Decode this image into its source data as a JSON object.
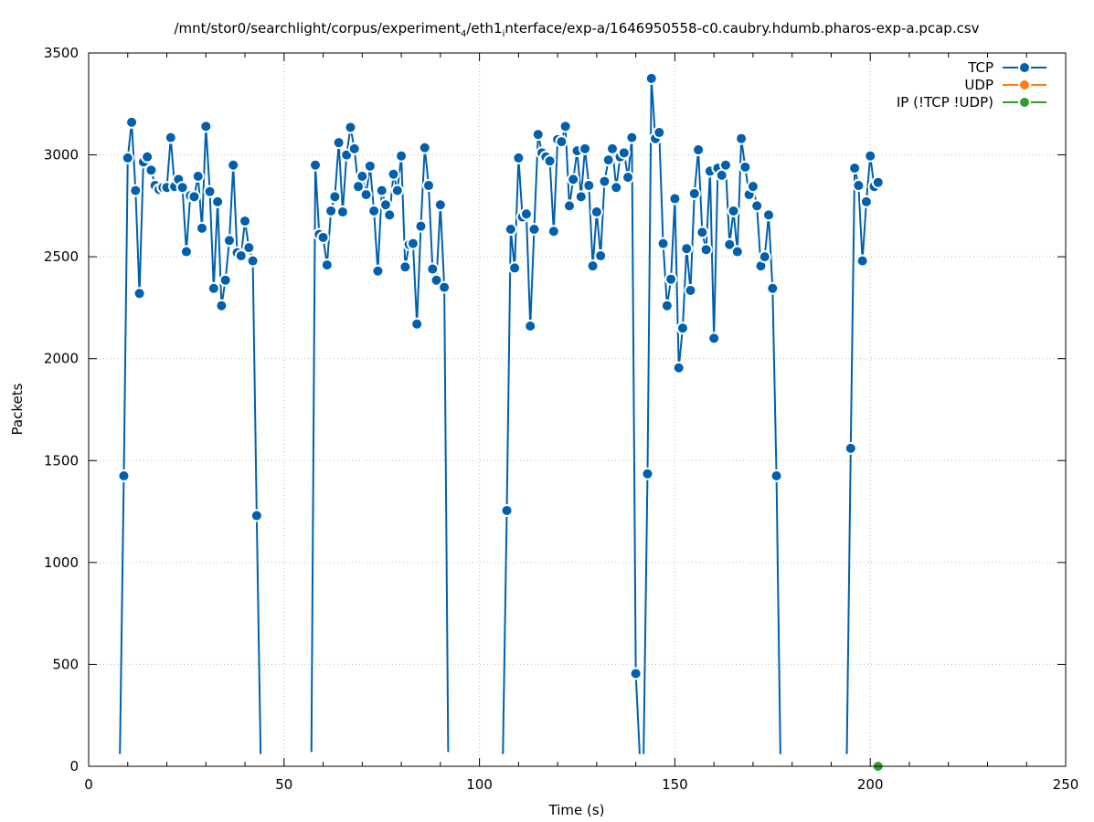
{
  "chart_data": {
    "type": "line",
    "title": "/mnt/stor0/searchlight/corpus/experiment",
    "title_sub1": "4",
    "title_mid": "/eth1",
    "title_sub2": "i",
    "title_tail": "nterface/exp-a/1646950558-c0.caubry.hdumb.pharos-exp-a.pcap.csv",
    "xlabel": "Time (s)",
    "ylabel": "Packets",
    "xlim": [
      0,
      250
    ],
    "ylim": [
      0,
      3500
    ],
    "xticks": [
      0,
      50,
      100,
      150,
      200,
      250
    ],
    "yticks": [
      0,
      500,
      1000,
      1500,
      2000,
      2500,
      3000,
      3500
    ],
    "grid": true,
    "legend_position": "top-right",
    "series": [
      {
        "name": "TCP",
        "color": "#0060ad",
        "points": [
          [
            8,
            60
          ],
          [
            9,
            1425
          ],
          [
            10,
            2985
          ],
          [
            11,
            3160
          ],
          [
            12,
            2825
          ],
          [
            13,
            2320
          ],
          [
            14,
            2965
          ],
          [
            15,
            2990
          ],
          [
            16,
            2925
          ],
          [
            17,
            2850
          ],
          [
            18,
            2830
          ],
          [
            19,
            2840
          ],
          [
            20,
            2840
          ],
          [
            21,
            3085
          ],
          [
            22,
            2845
          ],
          [
            23,
            2880
          ],
          [
            24,
            2840
          ],
          [
            25,
            2525
          ],
          [
            26,
            2800
          ],
          [
            27,
            2795
          ],
          [
            28,
            2895
          ],
          [
            29,
            2640
          ],
          [
            30,
            3140
          ],
          [
            31,
            2820
          ],
          [
            32,
            2345
          ],
          [
            33,
            2770
          ],
          [
            34,
            2260
          ],
          [
            35,
            2385
          ],
          [
            36,
            2580
          ],
          [
            37,
            2950
          ],
          [
            38,
            2520
          ],
          [
            39,
            2505
          ],
          [
            40,
            2675
          ],
          [
            41,
            2545
          ],
          [
            42,
            2480
          ],
          [
            43,
            1230
          ],
          [
            44,
            60
          ],
          null,
          [
            57,
            70
          ],
          [
            58,
            2950
          ],
          [
            59,
            2610
          ],
          [
            60,
            2595
          ],
          [
            61,
            2460
          ],
          [
            62,
            2725
          ],
          [
            63,
            2795
          ],
          [
            64,
            3060
          ],
          [
            65,
            2720
          ],
          [
            66,
            3000
          ],
          [
            67,
            3135
          ],
          [
            68,
            3030
          ],
          [
            69,
            2845
          ],
          [
            70,
            2895
          ],
          [
            71,
            2805
          ],
          [
            72,
            2945
          ],
          [
            73,
            2725
          ],
          [
            74,
            2430
          ],
          [
            75,
            2825
          ],
          [
            76,
            2755
          ],
          [
            77,
            2705
          ],
          [
            78,
            2905
          ],
          [
            79,
            2825
          ],
          [
            80,
            2995
          ],
          [
            81,
            2450
          ],
          [
            82,
            2560
          ],
          [
            83,
            2565
          ],
          [
            84,
            2170
          ],
          [
            85,
            2650
          ],
          [
            86,
            3035
          ],
          [
            87,
            2850
          ],
          [
            88,
            2440
          ],
          [
            89,
            2385
          ],
          [
            90,
            2755
          ],
          [
            91,
            2350
          ],
          [
            92,
            70
          ],
          null,
          [
            106,
            60
          ],
          [
            107,
            1255
          ],
          [
            108,
            2635
          ],
          [
            109,
            2445
          ],
          [
            110,
            2985
          ],
          [
            111,
            2695
          ],
          [
            112,
            2710
          ],
          [
            113,
            2160
          ],
          [
            114,
            2635
          ],
          [
            115,
            3100
          ],
          [
            116,
            3010
          ],
          [
            117,
            2990
          ],
          [
            118,
            2970
          ],
          [
            119,
            2625
          ],
          [
            120,
            3075
          ],
          [
            121,
            3065
          ],
          [
            122,
            3140
          ],
          [
            123,
            2750
          ],
          [
            124,
            2880
          ],
          [
            125,
            3020
          ],
          [
            126,
            2795
          ],
          [
            127,
            3030
          ],
          [
            128,
            2850
          ],
          [
            129,
            2455
          ],
          [
            130,
            2720
          ],
          [
            131,
            2505
          ],
          [
            132,
            2870
          ],
          [
            133,
            2975
          ],
          [
            134,
            3030
          ],
          [
            135,
            2840
          ],
          [
            136,
            2990
          ],
          [
            137,
            3010
          ],
          [
            138,
            2890
          ],
          [
            139,
            3085
          ],
          [
            140,
            455
          ],
          [
            141,
            60
          ],
          null,
          [
            142,
            60
          ],
          [
            143,
            1435
          ],
          [
            144,
            3375
          ],
          [
            145,
            3080
          ],
          [
            146,
            3110
          ],
          [
            147,
            2565
          ],
          [
            148,
            2260
          ],
          [
            149,
            2390
          ],
          [
            150,
            2785
          ],
          [
            151,
            1955
          ],
          [
            152,
            2150
          ],
          [
            153,
            2540
          ],
          [
            154,
            2335
          ],
          [
            155,
            2810
          ],
          [
            156,
            3025
          ],
          [
            157,
            2620
          ],
          [
            158,
            2535
          ],
          [
            159,
            2920
          ],
          [
            160,
            2100
          ],
          [
            161,
            2935
          ],
          [
            162,
            2900
          ],
          [
            163,
            2950
          ],
          [
            164,
            2560
          ],
          [
            165,
            2725
          ],
          [
            166,
            2525
          ],
          [
            167,
            3080
          ],
          [
            168,
            2940
          ],
          [
            169,
            2805
          ],
          [
            170,
            2845
          ],
          [
            171,
            2750
          ],
          [
            172,
            2455
          ],
          [
            173,
            2500
          ],
          [
            174,
            2705
          ],
          [
            175,
            2345
          ],
          [
            176,
            1425
          ],
          [
            177,
            60
          ],
          null,
          [
            194,
            60
          ],
          [
            195,
            1560
          ],
          [
            196,
            2935
          ],
          [
            197,
            2850
          ],
          [
            198,
            2480
          ],
          [
            199,
            2770
          ],
          [
            200,
            2995
          ],
          [
            201,
            2845
          ],
          [
            202,
            2865
          ]
        ]
      },
      {
        "name": "UDP",
        "color": "#ff7f0e",
        "points": []
      },
      {
        "name": "IP (!TCP  !UDP)",
        "color": "#2ca02c",
        "points": [
          [
            202,
            0
          ]
        ]
      }
    ]
  }
}
